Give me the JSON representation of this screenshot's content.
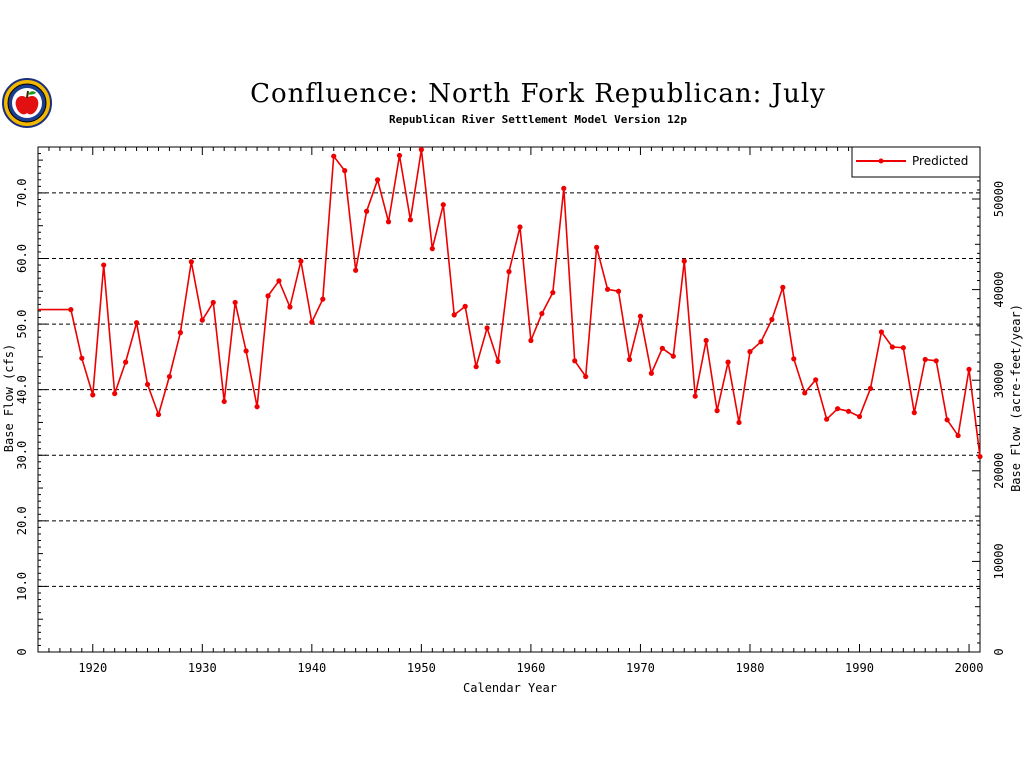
{
  "chart_data": {
    "type": "line",
    "title": "Confluence: North Fork Republican: July",
    "subtitle": "Republican River Settlement Model Version 12p",
    "xlabel": "Calendar Year",
    "ylabel": "Base Flow (cfs)",
    "y2label": "Base Flow (acre-feet/year)",
    "xlim": [
      1915,
      2001
    ],
    "ylim": [
      0,
      77
    ],
    "y2lim": [
      0,
      55740
    ],
    "x_ticks": [
      "1920",
      "1930",
      "1940",
      "1950",
      "1960",
      "1970",
      "1980",
      "1990",
      "2000"
    ],
    "y_ticks": [
      "0",
      "10.0",
      "20.0",
      "30.0",
      "40.0",
      "50.0",
      "60.0",
      "70.0"
    ],
    "y2_ticks": [
      "0",
      "10000",
      "20000",
      "30000",
      "40000",
      "50000"
    ],
    "grid": "horizontal dashed",
    "legend_placement": "top-right",
    "colors": {
      "series": "#ee0000",
      "grid": "#000000"
    },
    "series": [
      {
        "name": "Predicted",
        "points": [
          [
            1915,
            52.2
          ],
          [
            1918,
            52.2
          ],
          [
            1919,
            44.8
          ],
          [
            1920,
            39.2
          ],
          [
            1921,
            59.0
          ],
          [
            1922,
            39.4
          ],
          [
            1923,
            44.2
          ],
          [
            1924,
            50.2
          ],
          [
            1925,
            40.8
          ],
          [
            1926,
            36.2
          ],
          [
            1927,
            42.0
          ],
          [
            1928,
            48.7
          ],
          [
            1929,
            59.5
          ],
          [
            1930,
            50.6
          ],
          [
            1931,
            53.3
          ],
          [
            1932,
            38.2
          ],
          [
            1933,
            53.3
          ],
          [
            1934,
            45.9
          ],
          [
            1935,
            37.4
          ],
          [
            1936,
            54.3
          ],
          [
            1937,
            56.6
          ],
          [
            1938,
            52.6
          ],
          [
            1939,
            59.6
          ],
          [
            1940,
            50.3
          ],
          [
            1941,
            53.8
          ],
          [
            1942,
            75.6
          ],
          [
            1943,
            73.4
          ],
          [
            1944,
            58.2
          ],
          [
            1945,
            67.2
          ],
          [
            1946,
            72.0
          ],
          [
            1947,
            65.6
          ],
          [
            1948,
            75.7
          ],
          [
            1949,
            65.9
          ],
          [
            1950,
            76.6
          ],
          [
            1951,
            61.5
          ],
          [
            1952,
            68.2
          ],
          [
            1953,
            51.4
          ],
          [
            1954,
            52.7
          ],
          [
            1955,
            43.5
          ],
          [
            1956,
            49.4
          ],
          [
            1957,
            44.3
          ],
          [
            1958,
            58.0
          ],
          [
            1959,
            64.8
          ],
          [
            1960,
            47.5
          ],
          [
            1961,
            51.6
          ],
          [
            1962,
            54.8
          ],
          [
            1963,
            70.7
          ],
          [
            1964,
            44.4
          ],
          [
            1965,
            42.0
          ],
          [
            1966,
            61.7
          ],
          [
            1967,
            55.3
          ],
          [
            1968,
            55.0
          ],
          [
            1969,
            44.6
          ],
          [
            1970,
            51.2
          ],
          [
            1971,
            42.5
          ],
          [
            1972,
            46.3
          ],
          [
            1973,
            45.1
          ],
          [
            1974,
            59.6
          ],
          [
            1975,
            39.0
          ],
          [
            1976,
            47.5
          ],
          [
            1977,
            36.8
          ],
          [
            1978,
            44.2
          ],
          [
            1979,
            35.0
          ],
          [
            1980,
            45.8
          ],
          [
            1981,
            47.3
          ],
          [
            1982,
            50.7
          ],
          [
            1983,
            55.6
          ],
          [
            1984,
            44.7
          ],
          [
            1985,
            39.5
          ],
          [
            1986,
            41.5
          ],
          [
            1987,
            35.5
          ],
          [
            1988,
            37.1
          ],
          [
            1989,
            36.7
          ],
          [
            1990,
            35.9
          ],
          [
            1991,
            40.2
          ],
          [
            1992,
            48.8
          ],
          [
            1993,
            46.5
          ],
          [
            1994,
            46.4
          ],
          [
            1995,
            36.5
          ],
          [
            1996,
            44.6
          ],
          [
            1997,
            44.4
          ],
          [
            1998,
            35.4
          ],
          [
            1999,
            33.0
          ],
          [
            2000,
            43.1
          ],
          [
            2001,
            29.8
          ]
        ]
      }
    ]
  },
  "logo": {
    "name": "state-seal-logo"
  }
}
